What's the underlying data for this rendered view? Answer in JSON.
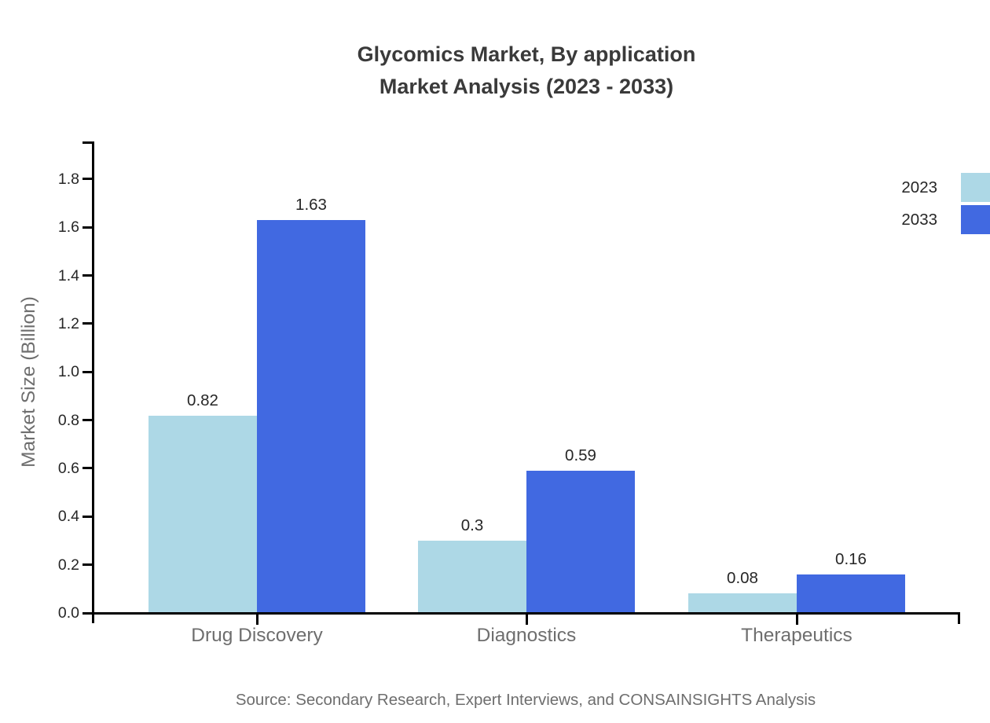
{
  "title": {
    "line1": "Glycomics Market, By application",
    "line2": "Market Analysis (2023 - 2033)"
  },
  "source_note": "Source: Secondary Research, Expert Interviews, and CONSAINSIGHTS Analysis",
  "colors": {
    "series_2023": "#ADD8E6",
    "series_2033": "#4169E1",
    "axis": "#000000",
    "title_text": "#3A3A3A",
    "value_text": "#262626",
    "muted_text": "#6E6E6E",
    "background": "#FFFFFF"
  },
  "chart_data": {
    "type": "bar",
    "title": "Glycomics Market, By application Market Analysis (2023 - 2033)",
    "categories": [
      "Drug Discovery",
      "Diagnostics",
      "Therapeutics"
    ],
    "series": [
      {
        "name": "2023",
        "color": "#ADD8E6",
        "values": [
          0.82,
          0.3,
          0.08
        ]
      },
      {
        "name": "2033",
        "color": "#4169E1",
        "values": [
          1.63,
          0.59,
          0.16
        ]
      }
    ],
    "value_labels": {
      "2023": [
        "0.82",
        "0.3",
        "0.08"
      ],
      "2033": [
        "1.63",
        "0.59",
        "0.16"
      ]
    },
    "ylabel": "Market Size (Billion)",
    "xlabel": "",
    "ylim": [
      0,
      1.96
    ],
    "yticks": [
      0,
      0.2,
      0.4,
      0.6,
      0.8,
      1.0,
      1.2,
      1.4,
      1.6,
      1.8
    ],
    "grid": false,
    "legend_position": "top-right",
    "bar_value_labels": true
  }
}
